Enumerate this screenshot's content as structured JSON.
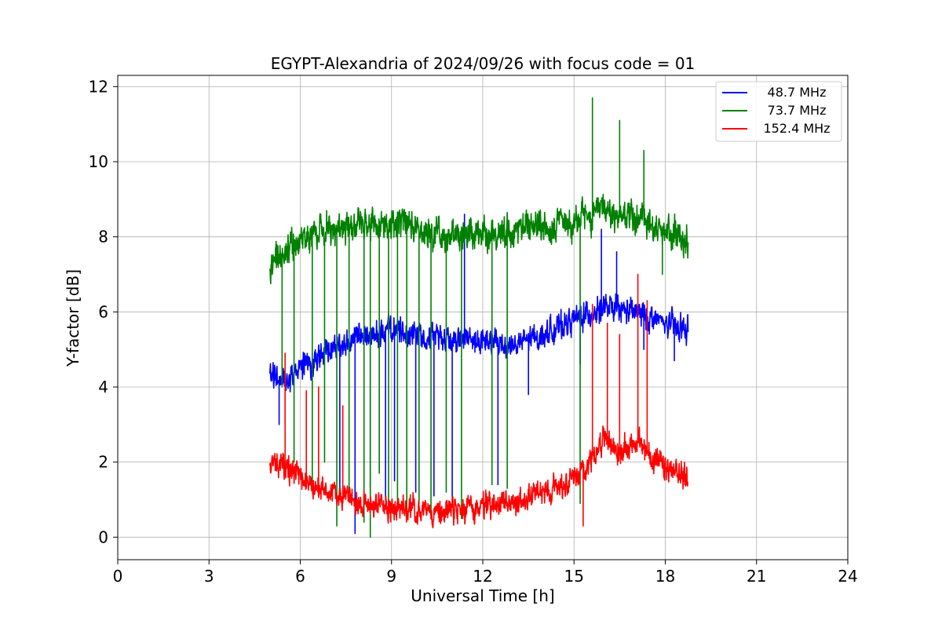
{
  "chart_data": {
    "type": "line",
    "title": "EGYPT-Alexandria of 2024/09/26 with focus code = 01",
    "xlabel": "Universal Time [h]",
    "ylabel": "Y-factor [dB]",
    "xlim": [
      0,
      24
    ],
    "ylim": [
      -0.6,
      12.3
    ],
    "xticks": [
      "0",
      "3",
      "6",
      "9",
      "12",
      "15",
      "18",
      "21",
      "24"
    ],
    "yticks": [
      "0",
      "2",
      "4",
      "6",
      "8",
      "10",
      "12"
    ],
    "grid": true,
    "legend_position": "top-right",
    "time_range": [
      5.0,
      18.75
    ],
    "series": [
      {
        "name": "48.7 MHz",
        "color": "#0000ff",
        "noise_amplitude": 0.45,
        "anchors": [
          [
            5.0,
            4.3
          ],
          [
            5.5,
            4.2
          ],
          [
            6.0,
            4.5
          ],
          [
            6.5,
            4.7
          ],
          [
            7.0,
            5.0
          ],
          [
            8.0,
            5.3
          ],
          [
            9.0,
            5.5
          ],
          [
            10.0,
            5.4
          ],
          [
            11.0,
            5.3
          ],
          [
            12.0,
            5.2
          ],
          [
            13.0,
            5.1
          ],
          [
            14.0,
            5.4
          ],
          [
            15.0,
            5.8
          ],
          [
            16.0,
            6.1
          ],
          [
            17.0,
            6.0
          ],
          [
            18.0,
            5.7
          ],
          [
            18.75,
            5.5
          ]
        ],
        "spikes": [
          [
            5.3,
            3.0
          ],
          [
            7.3,
            1.0
          ],
          [
            7.8,
            0.1
          ],
          [
            8.3,
            1.3
          ],
          [
            8.8,
            1.0
          ],
          [
            9.1,
            1.5
          ],
          [
            9.8,
            1.2
          ],
          [
            10.4,
            1.1
          ],
          [
            11.0,
            0.8
          ],
          [
            11.4,
            8.6
          ],
          [
            12.5,
            1.4
          ],
          [
            13.5,
            3.8
          ],
          [
            15.2,
            4.6
          ],
          [
            15.9,
            8.2
          ],
          [
            16.4,
            7.6
          ],
          [
            17.3,
            5.0
          ],
          [
            18.3,
            4.7
          ]
        ]
      },
      {
        "name": "73.7 MHz",
        "color": "#008000",
        "noise_amplitude": 0.55,
        "anchors": [
          [
            5.0,
            7.2
          ],
          [
            5.5,
            7.6
          ],
          [
            6.0,
            7.9
          ],
          [
            6.5,
            8.1
          ],
          [
            7.0,
            8.2
          ],
          [
            8.0,
            8.3
          ],
          [
            9.0,
            8.4
          ],
          [
            10.0,
            8.2
          ],
          [
            11.0,
            8.0
          ],
          [
            12.0,
            8.1
          ],
          [
            13.0,
            8.2
          ],
          [
            14.0,
            8.3
          ],
          [
            15.0,
            8.4
          ],
          [
            16.0,
            8.7
          ],
          [
            17.0,
            8.5
          ],
          [
            18.0,
            8.2
          ],
          [
            18.75,
            7.8
          ]
        ],
        "spikes": [
          [
            5.4,
            4.0
          ],
          [
            5.8,
            2.0
          ],
          [
            6.4,
            1.5
          ],
          [
            6.8,
            2.0
          ],
          [
            7.2,
            0.3
          ],
          [
            7.6,
            1.2
          ],
          [
            8.1,
            0.4
          ],
          [
            8.3,
            0.0
          ],
          [
            8.6,
            1.7
          ],
          [
            8.9,
            0.5
          ],
          [
            9.2,
            0.8
          ],
          [
            9.5,
            0.7
          ],
          [
            9.9,
            0.9
          ],
          [
            10.3,
            0.7
          ],
          [
            10.8,
            1.2
          ],
          [
            11.3,
            0.5
          ],
          [
            12.3,
            1.4
          ],
          [
            12.8,
            1.3
          ],
          [
            13.4,
            8.6
          ],
          [
            15.2,
            0.9
          ],
          [
            15.6,
            11.7
          ],
          [
            16.5,
            11.1
          ],
          [
            17.3,
            10.3
          ],
          [
            17.9,
            7.0
          ]
        ]
      },
      {
        "name": "152.4 MHz",
        "color": "#ff0000",
        "noise_amplitude": 0.45,
        "anchors": [
          [
            5.0,
            2.0
          ],
          [
            5.5,
            1.9
          ],
          [
            6.0,
            1.6
          ],
          [
            6.5,
            1.3
          ],
          [
            7.0,
            1.2
          ],
          [
            7.5,
            1.1
          ],
          [
            8.0,
            0.9
          ],
          [
            9.0,
            0.8
          ],
          [
            10.0,
            0.7
          ],
          [
            11.0,
            0.7
          ],
          [
            12.0,
            0.8
          ],
          [
            13.0,
            0.9
          ],
          [
            14.0,
            1.2
          ],
          [
            15.0,
            1.6
          ],
          [
            15.5,
            2.0
          ],
          [
            16.0,
            2.7
          ],
          [
            16.5,
            2.2
          ],
          [
            17.0,
            2.6
          ],
          [
            17.5,
            2.2
          ],
          [
            18.0,
            1.8
          ],
          [
            18.75,
            1.6
          ]
        ],
        "spikes": [
          [
            5.5,
            4.9
          ],
          [
            6.2,
            3.9
          ],
          [
            6.6,
            4.0
          ],
          [
            7.4,
            3.5
          ],
          [
            15.3,
            0.3
          ],
          [
            15.6,
            6.2
          ],
          [
            16.1,
            5.7
          ],
          [
            16.5,
            5.4
          ],
          [
            17.1,
            7.0
          ],
          [
            17.4,
            6.3
          ]
        ]
      }
    ]
  }
}
